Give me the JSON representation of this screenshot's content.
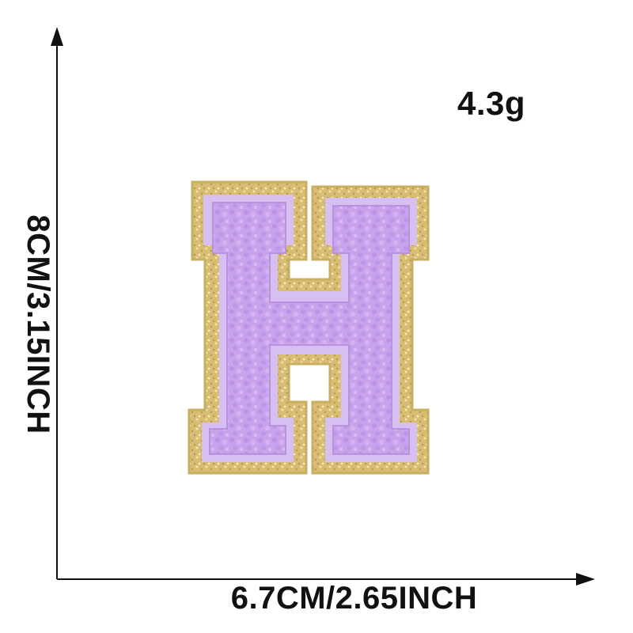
{
  "weight": "4.3g",
  "width_label": "6.7CM/2.65INCH",
  "height_label": "8CM/3.15INCH",
  "product": {
    "letter": "H",
    "fill_color": "#c9a3ea",
    "border_color": "#d8bd76",
    "glitter_color": "#e6cf8f"
  },
  "icons": {
    "vertical_arrow": "arrow-up-icon",
    "horizontal_arrow": "arrow-right-icon"
  }
}
